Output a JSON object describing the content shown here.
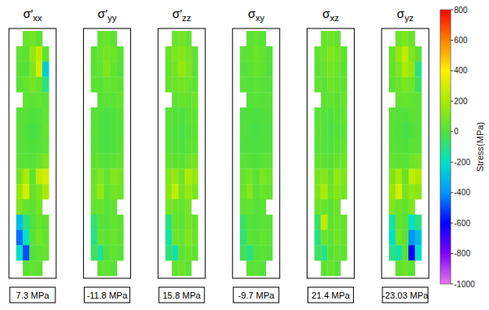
{
  "chart_data": {
    "type": "heatmap",
    "panels": [
      {
        "symbol": "σ′",
        "subscript": "xx",
        "value": 7.3,
        "value_label": "7.3 MPa",
        "cells": [
          [
            null,
            50,
            80,
            30,
            null
          ],
          [
            40,
            20,
            150,
            250,
            30
          ],
          [
            30,
            0,
            100,
            300,
            -250
          ],
          [
            20,
            50,
            80,
            50,
            -100
          ],
          [
            null,
            30,
            20,
            40,
            20
          ],
          [
            20,
            10,
            0,
            10,
            30
          ],
          [
            30,
            0,
            -20,
            0,
            40
          ],
          [
            20,
            10,
            0,
            10,
            30
          ],
          [
            30,
            20,
            10,
            50,
            100
          ],
          [
            80,
            200,
            30,
            250,
            300
          ],
          [
            150,
            300,
            50,
            100,
            200
          ],
          [
            100,
            50,
            30,
            80,
            null
          ],
          [
            -300,
            -100,
            0,
            50,
            30
          ],
          [
            -450,
            -200,
            20,
            80,
            40
          ],
          [
            -200,
            -500,
            0,
            30,
            50
          ],
          [
            null,
            20,
            40,
            30,
            null
          ]
        ]
      },
      {
        "symbol": "σ′",
        "subscript": "yy",
        "value": -11.8,
        "value_label": "-11.8 MPa",
        "cells": [
          [
            null,
            40,
            60,
            30,
            null
          ],
          [
            30,
            50,
            80,
            60,
            20
          ],
          [
            20,
            40,
            100,
            50,
            10
          ],
          [
            30,
            20,
            50,
            40,
            30
          ],
          [
            null,
            20,
            30,
            20,
            40
          ],
          [
            10,
            0,
            -10,
            0,
            20
          ],
          [
            20,
            0,
            -20,
            0,
            10
          ],
          [
            10,
            0,
            -10,
            0,
            20
          ],
          [
            30,
            20,
            10,
            30,
            40
          ],
          [
            50,
            100,
            40,
            120,
            80
          ],
          [
            60,
            150,
            30,
            80,
            60
          ],
          [
            40,
            50,
            20,
            30,
            null
          ],
          [
            -80,
            20,
            10,
            40,
            30
          ],
          [
            -100,
            50,
            20,
            60,
            30
          ],
          [
            -50,
            -120,
            10,
            40,
            20
          ],
          [
            null,
            30,
            40,
            20,
            null
          ]
        ]
      },
      {
        "symbol": "σ′",
        "subscript": "zz",
        "value": 15.8,
        "value_label": "15.8 MPa",
        "cells": [
          [
            null,
            60,
            80,
            40,
            null
          ],
          [
            50,
            100,
            120,
            80,
            30
          ],
          [
            40,
            80,
            150,
            100,
            30
          ],
          [
            50,
            60,
            80,
            60,
            40
          ],
          [
            null,
            30,
            50,
            40,
            60
          ],
          [
            20,
            10,
            0,
            20,
            40
          ],
          [
            30,
            0,
            -10,
            10,
            30
          ],
          [
            20,
            10,
            0,
            20,
            40
          ],
          [
            40,
            30,
            20,
            60,
            80
          ],
          [
            100,
            150,
            60,
            200,
            150
          ],
          [
            120,
            250,
            80,
            150,
            100
          ],
          [
            80,
            60,
            40,
            80,
            null
          ],
          [
            -100,
            50,
            30,
            80,
            50
          ],
          [
            -150,
            60,
            40,
            100,
            60
          ],
          [
            -80,
            -150,
            30,
            60,
            40
          ],
          [
            null,
            40,
            60,
            30,
            null
          ]
        ]
      },
      {
        "symbol": "σ",
        "subscript": "xy",
        "value": -9.7,
        "value_label": "-9.7 MPa",
        "cells": [
          [
            null,
            30,
            40,
            20,
            null
          ],
          [
            20,
            30,
            60,
            40,
            10
          ],
          [
            10,
            20,
            50,
            40,
            0
          ],
          [
            20,
            10,
            30,
            20,
            10
          ],
          [
            null,
            10,
            20,
            10,
            20
          ],
          [
            0,
            0,
            -10,
            0,
            10
          ],
          [
            10,
            -10,
            -20,
            0,
            0
          ],
          [
            0,
            0,
            -10,
            0,
            10
          ],
          [
            20,
            10,
            0,
            20,
            30
          ],
          [
            40,
            80,
            20,
            100,
            60
          ],
          [
            50,
            120,
            20,
            60,
            40
          ],
          [
            30,
            40,
            10,
            20,
            null
          ],
          [
            -60,
            10,
            0,
            30,
            20
          ],
          [
            -80,
            30,
            10,
            50,
            20
          ],
          [
            -40,
            -100,
            0,
            30,
            10
          ],
          [
            null,
            20,
            30,
            10,
            null
          ]
        ]
      },
      {
        "symbol": "σ",
        "subscript": "xz",
        "value": 21.4,
        "value_label": "21.4 MPa",
        "cells": [
          [
            null,
            50,
            70,
            40,
            null
          ],
          [
            40,
            60,
            100,
            80,
            30
          ],
          [
            30,
            50,
            80,
            60,
            20
          ],
          [
            40,
            30,
            60,
            50,
            30
          ],
          [
            null,
            30,
            40,
            30,
            50
          ],
          [
            20,
            10,
            0,
            20,
            40
          ],
          [
            30,
            10,
            -10,
            10,
            30
          ],
          [
            20,
            10,
            0,
            20,
            40
          ],
          [
            40,
            30,
            20,
            50,
            60
          ],
          [
            80,
            120,
            50,
            150,
            100
          ],
          [
            100,
            200,
            60,
            120,
            80
          ],
          [
            60,
            50,
            30,
            60,
            null
          ],
          [
            -60,
            250,
            30,
            60,
            40
          ],
          [
            -100,
            60,
            30,
            80,
            40
          ],
          [
            -50,
            -100,
            20,
            50,
            30
          ],
          [
            null,
            30,
            50,
            20,
            null
          ]
        ]
      },
      {
        "symbol": "σ",
        "subscript": "yz",
        "value": -23.03,
        "value_label": "-23.03 MPa",
        "cells": [
          [
            null,
            60,
            100,
            50,
            null
          ],
          [
            50,
            150,
            250,
            100,
            30
          ],
          [
            40,
            100,
            200,
            150,
            -100
          ],
          [
            30,
            60,
            100,
            60,
            -50
          ],
          [
            null,
            40,
            50,
            40,
            30
          ],
          [
            20,
            10,
            0,
            20,
            30
          ],
          [
            30,
            0,
            -20,
            0,
            20
          ],
          [
            20,
            10,
            0,
            20,
            30
          ],
          [
            40,
            30,
            20,
            60,
            80
          ],
          [
            100,
            200,
            50,
            250,
            200
          ],
          [
            150,
            300,
            80,
            150,
            120
          ],
          [
            100,
            60,
            40,
            100,
            null
          ],
          [
            -150,
            50,
            20,
            -200,
            -100
          ],
          [
            -200,
            80,
            30,
            -400,
            -300
          ],
          [
            -100,
            -150,
            20,
            -600,
            -200
          ],
          [
            null,
            40,
            60,
            30,
            null
          ]
        ]
      }
    ],
    "colorbar": {
      "label": "Stress(MPa)",
      "range": [
        -1000,
        800
      ],
      "ticks": [
        800,
        600,
        400,
        200,
        0,
        -200,
        -400,
        -600,
        -800,
        -1000
      ]
    }
  }
}
